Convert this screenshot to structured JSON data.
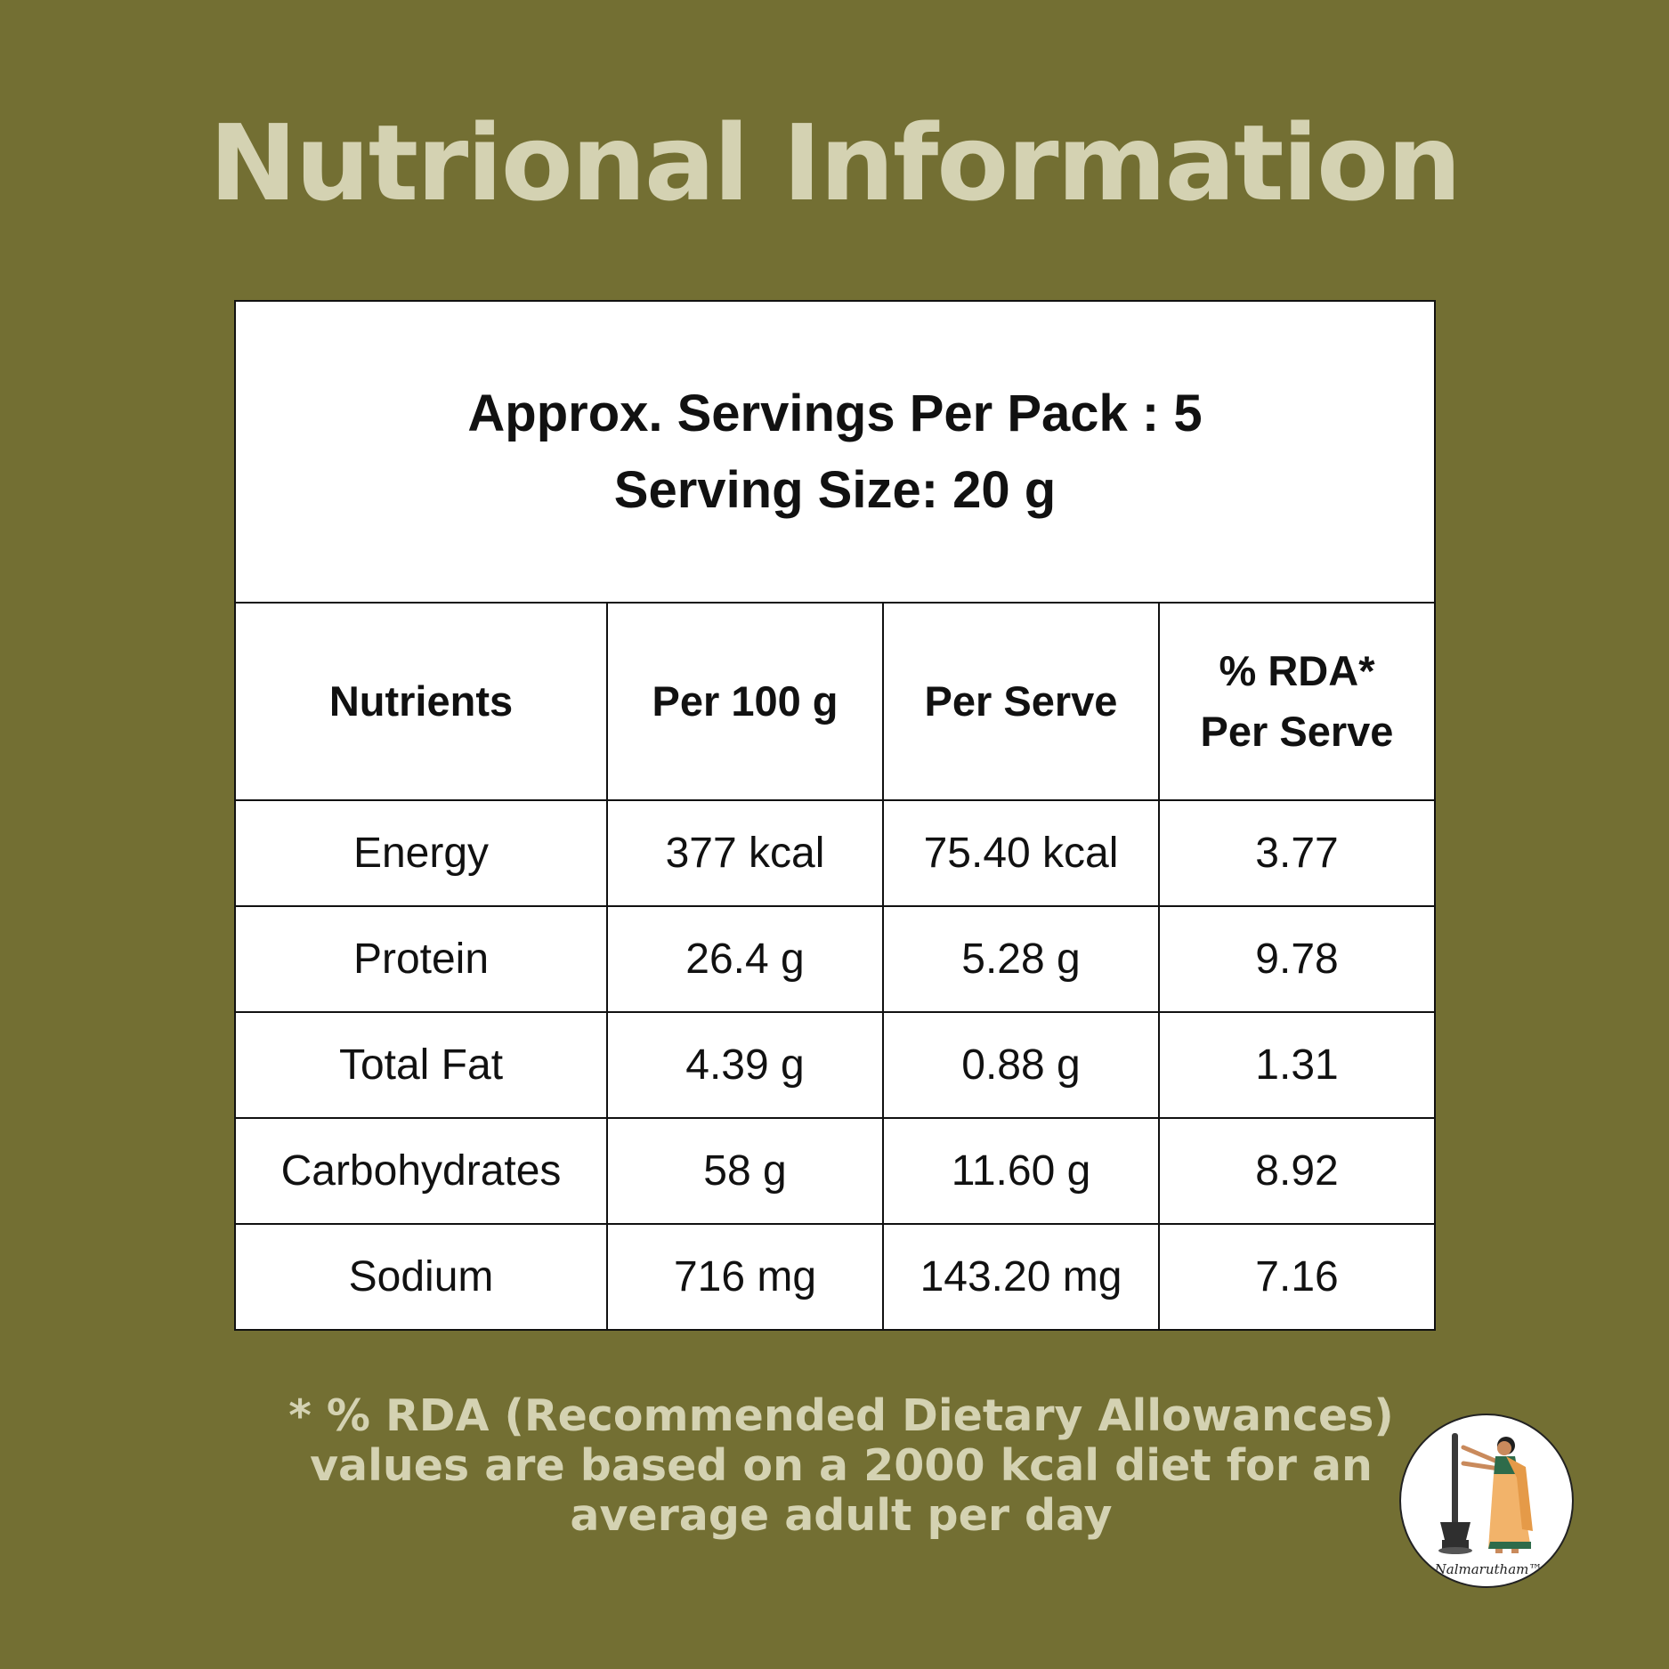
{
  "title": "Nutrional Information",
  "serving": {
    "line1": "Approx. Servings Per Pack : 5",
    "line2": "Serving Size: 20 g"
  },
  "table": {
    "headers": {
      "nutrients": "Nutrients",
      "per100": "Per 100 g",
      "perServe": "Per Serve",
      "rdaLine1": "% RDA*",
      "rdaLine2": "Per Serve"
    },
    "rows": [
      {
        "nutrient": "Energy",
        "per100": "377 kcal",
        "perServe": "75.40 kcal",
        "rda": "3.77"
      },
      {
        "nutrient": "Protein",
        "per100": "26.4 g",
        "perServe": "5.28 g",
        "rda": "9.78"
      },
      {
        "nutrient": "Total Fat",
        "per100": "4.39 g",
        "perServe": "0.88 g",
        "rda": "1.31"
      },
      {
        "nutrient": "Carbohydrates",
        "per100": "58 g",
        "perServe": "11.60 g",
        "rda": "8.92"
      },
      {
        "nutrient": "Sodium",
        "per100": "716 mg",
        "perServe": "143.20 mg",
        "rda": "7.16"
      }
    ]
  },
  "footnote": {
    "line1": "* % RDA (Recommended Dietary Allowances)",
    "line2": "values are based on a 2000 kcal diet for an",
    "line3": "average adult per day"
  },
  "logo": {
    "text": "Nalmarutham™",
    "icon": "woman-with-mortar-pestle-icon"
  },
  "colors": {
    "background": "#736f33",
    "accent_text": "#d4d2b2",
    "table_bg": "#ffffff",
    "table_text": "#111111"
  }
}
